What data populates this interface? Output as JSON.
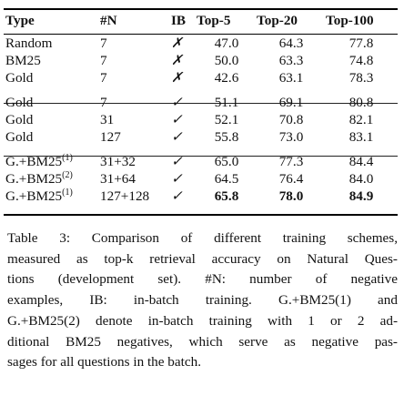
{
  "table": {
    "headers": [
      "Type",
      "#N",
      "IB",
      "Top-5",
      "Top-20",
      "Top-100"
    ],
    "groups": [
      [
        {
          "type": "Random",
          "n": "7",
          "ib": "✗",
          "top5": "47.0",
          "top20": "64.3",
          "top100": "77.8"
        },
        {
          "type": "BM25",
          "n": "7",
          "ib": "✗",
          "top5": "50.0",
          "top20": "63.3",
          "top100": "74.8"
        },
        {
          "type": "Gold",
          "n": "7",
          "ib": "✗",
          "top5": "42.6",
          "top20": "63.1",
          "top100": "78.3"
        }
      ],
      [
        {
          "type": "Gold",
          "n": "7",
          "ib": "✓",
          "top5": "51.1",
          "top20": "69.1",
          "top100": "80.8"
        },
        {
          "type": "Gold",
          "n": "31",
          "ib": "✓",
          "top5": "52.1",
          "top20": "70.8",
          "top100": "82.1"
        },
        {
          "type": "Gold",
          "n": "127",
          "ib": "✓",
          "top5": "55.8",
          "top20": "73.0",
          "top100": "83.1"
        }
      ],
      [
        {
          "type": "G.+BM25",
          "sup": "(1)",
          "n": "31+32",
          "ib": "✓",
          "top5": "65.0",
          "top20": "77.3",
          "top100": "84.4"
        },
        {
          "type": "G.+BM25",
          "sup": "(2)",
          "n": "31+64",
          "ib": "✓",
          "top5": "64.5",
          "top20": "76.4",
          "top100": "84.0"
        },
        {
          "type": "G.+BM25",
          "sup": "(1)",
          "n": "127+128",
          "ib": "✓",
          "top5": "65.8",
          "top20": "78.0",
          "top100": "84.9",
          "bold": true
        }
      ]
    ]
  },
  "caption": {
    "lines": [
      "Table 3:  Comparison of different training schemes,",
      "measured as top-k retrieval accuracy on Natural Ques-",
      "tions (development set).   #N: number of negative",
      "examples, IB: in-batch training.   G.+BM25(1) and",
      "G.+BM25(2) denote in-batch training with 1 or 2 ad-",
      "ditional BM25 negatives, which serve as negative pas-",
      "sages for all questions in the batch."
    ]
  }
}
